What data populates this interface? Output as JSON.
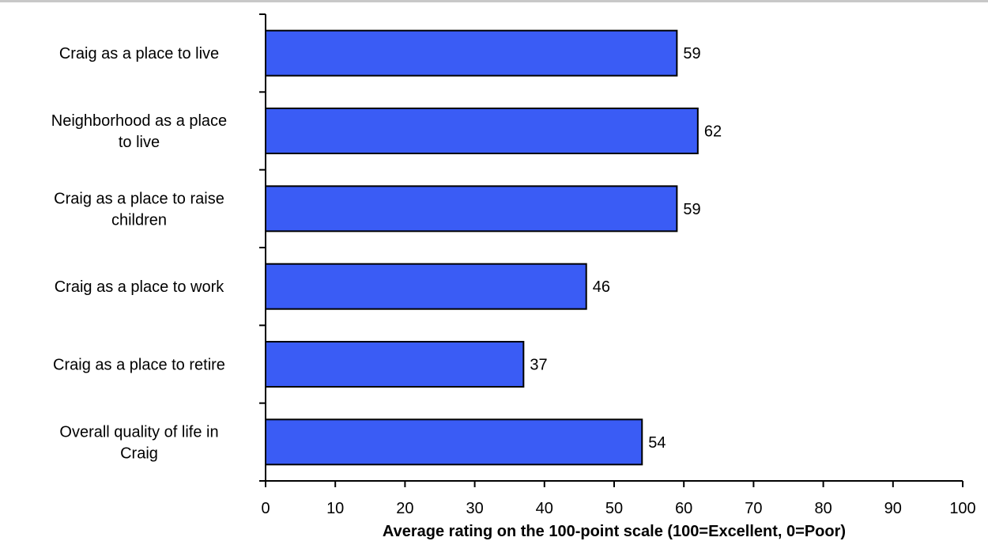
{
  "chart_data": {
    "type": "bar",
    "orientation": "horizontal",
    "categories": [
      "Craig as a place to live",
      "Neighborhood as a place to live",
      "Craig as a place to raise children",
      "Craig as a place to work",
      "Craig as a place to retire",
      "Overall quality of life in Craig"
    ],
    "category_lines": [
      [
        "Craig as a place to live"
      ],
      [
        "Neighborhood as a place",
        "to live"
      ],
      [
        "Craig as a place to raise",
        "children"
      ],
      [
        "Craig as a place to work"
      ],
      [
        "Craig as a place to retire"
      ],
      [
        "Overall quality of life in",
        "Craig"
      ]
    ],
    "values": [
      59,
      62,
      59,
      46,
      37,
      54
    ],
    "data_labels": [
      "59",
      "62",
      "59",
      "46",
      "37",
      "54"
    ],
    "xlim": [
      0,
      100
    ],
    "xticks": [
      0,
      10,
      20,
      30,
      40,
      50,
      60,
      70,
      80,
      90,
      100
    ],
    "xlabel": "Average rating on the 100-point scale (100=Excellent, 0=Poor)",
    "ylabel": "",
    "title": "",
    "grid": false,
    "legend": "none",
    "bar_color": "#3a5cf5",
    "bar_edge_color": "#000000"
  }
}
